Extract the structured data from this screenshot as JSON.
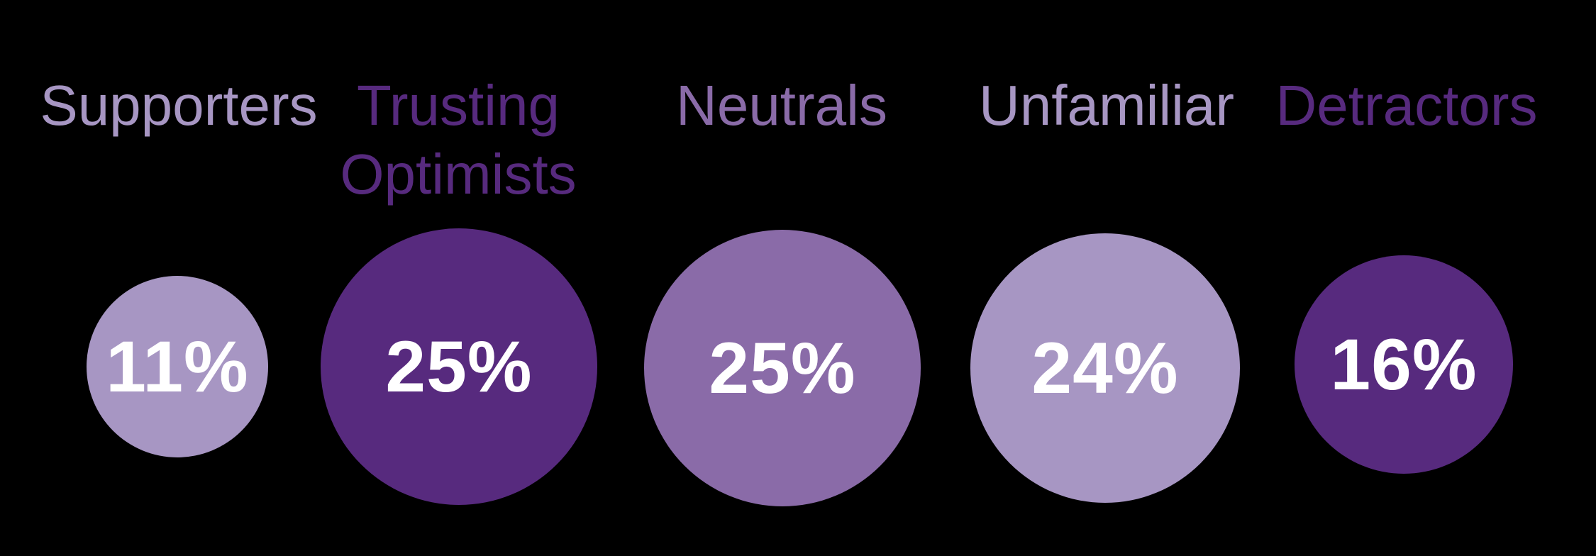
{
  "chart_data": {
    "type": "bubble",
    "subtype": "proportional-area-circles",
    "categories": [
      "Supporters",
      "Trusting Optimists",
      "Neutrals",
      "Unfamiliar",
      "Detractors"
    ],
    "values": [
      11,
      25,
      25,
      24,
      16
    ],
    "value_labels": [
      "11%",
      "25%",
      "25%",
      "24%",
      "16%"
    ],
    "unit": "%",
    "title": "",
    "legend_position": "none",
    "layout_hint": "single horizontal row; circle area proportional to value; category label above each circle in the circle's color",
    "background_color": "#000000",
    "value_label_color": "#FFFFFF"
  },
  "palette": {
    "dark_purple": "#572A7E",
    "medium_purple": "#8A6BA8",
    "light_purple": "#A796C3",
    "value_text": "#FFFFFF",
    "background": "#000000"
  },
  "segments": [
    {
      "label": "Supporters",
      "value": "11%",
      "color": "#A796C3"
    },
    {
      "label": "Trusting Optimists",
      "value": "25%",
      "color": "#572A7E"
    },
    {
      "label": "Neutrals",
      "value": "25%",
      "color": "#8A6BA8"
    },
    {
      "label": "Unfamiliar",
      "value": "24%",
      "color": "#A796C3"
    },
    {
      "label": "Detractors",
      "value": "16%",
      "color": "#572A7E"
    }
  ]
}
